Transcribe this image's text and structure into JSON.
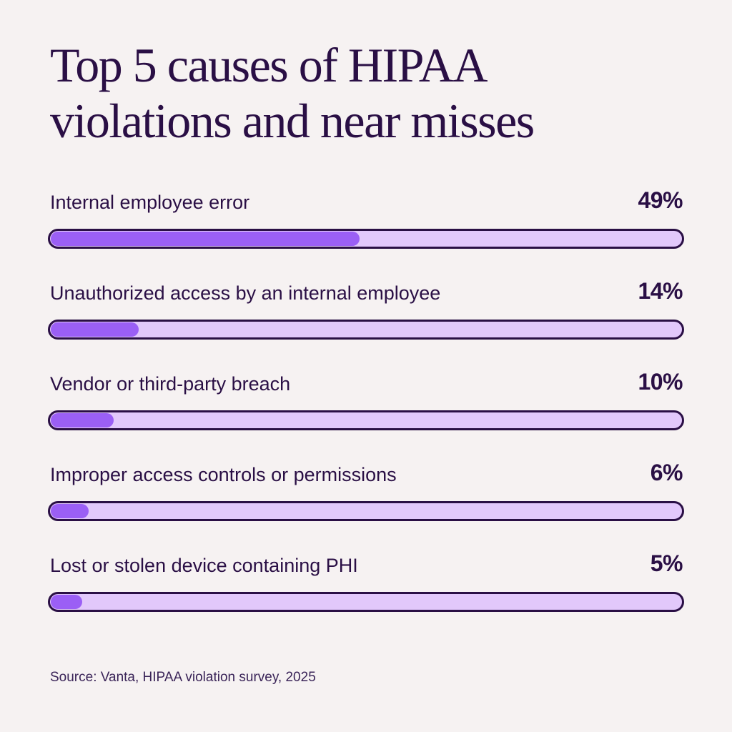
{
  "title": {
    "line1": "Top 5 causes of HIPAA",
    "line2": "violations and near misses"
  },
  "rows": [
    {
      "label": "Internal employee error",
      "value": 49,
      "display": "49%"
    },
    {
      "label": "Unauthorized access by an internal employee",
      "value": 14,
      "display": "14%"
    },
    {
      "label": "Vendor or third-party breach",
      "value": 10,
      "display": "10%"
    },
    {
      "label": "Improper access controls or permissions",
      "value": 6,
      "display": "6%"
    },
    {
      "label": "Lost or stolen device containing PHI",
      "value": 5,
      "display": "5%"
    }
  ],
  "source": "Source: Vanta, HIPAA violation survey, 2025",
  "colors": {
    "background": "#f6f2f2",
    "text": "#2a0f45",
    "bar_outline": "#2a0f45",
    "bar_track": "#e2c8fb",
    "bar_fill": "#9b5ff5"
  },
  "chart_data": {
    "type": "bar",
    "orientation": "horizontal",
    "title": "Top 5 causes of HIPAA violations and near misses",
    "categories": [
      "Internal employee error",
      "Unauthorized access by an internal employee",
      "Vendor or third-party breach",
      "Improper access controls or permissions",
      "Lost or stolen device containing PHI"
    ],
    "values": [
      49,
      14,
      10,
      6,
      5
    ],
    "unit": "%",
    "xlim": [
      0,
      100
    ],
    "xlabel": "",
    "ylabel": "",
    "grid": false,
    "legend": "none",
    "source": "Source: Vanta, HIPAA violation survey, 2025"
  }
}
